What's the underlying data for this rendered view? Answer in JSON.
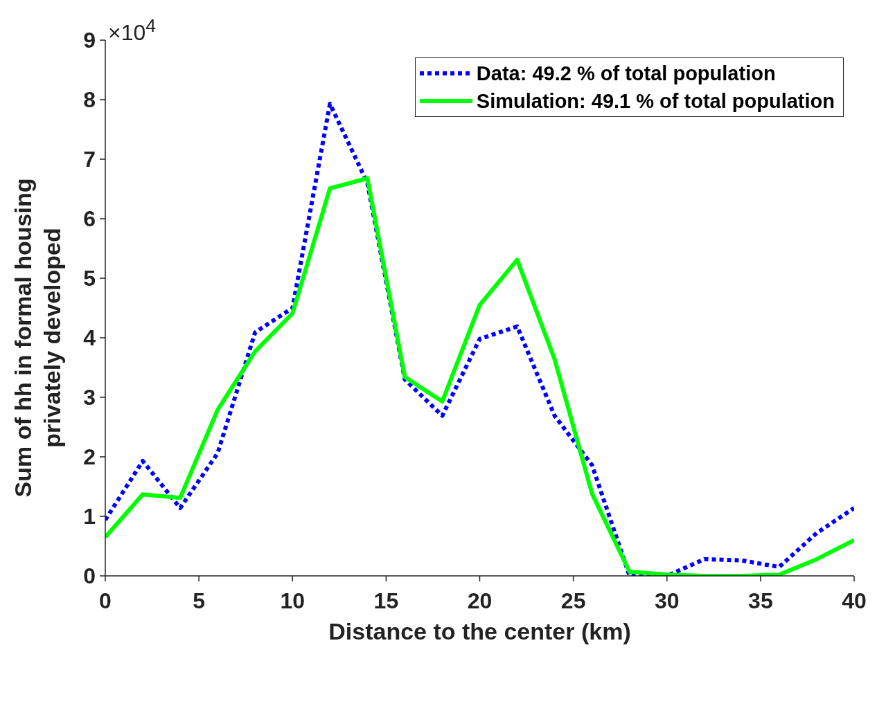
{
  "chart_data": {
    "type": "line",
    "xlabel": "Distance to the center (km)",
    "ylabel": "Sum of hh in formal housing privately developed",
    "annotations": [
      "×10$^{4}$"
    ],
    "x": [
      0,
      2,
      4,
      6,
      8,
      10,
      12,
      14,
      16,
      18,
      20,
      22,
      24,
      26,
      28,
      30,
      32,
      34,
      36,
      38,
      40
    ],
    "series": [
      {
        "name": "Data: 49.2 % of total population",
        "color": "#0000ff",
        "line_style": "dotted",
        "values": [
          0.94,
          1.93,
          1.14,
          2.06,
          4.09,
          4.5,
          7.93,
          6.6,
          3.3,
          2.69,
          3.98,
          4.19,
          2.69,
          1.86,
          0,
          0,
          0.28,
          0.26,
          0.15,
          0.72,
          1.14
        ]
      },
      {
        "name": "Simulation: 49.1 % of total population",
        "color": "#00ff00",
        "line_style": "solid",
        "values": [
          0.65,
          1.37,
          1.31,
          2.79,
          3.77,
          4.41,
          6.51,
          6.68,
          3.34,
          2.93,
          4.55,
          5.31,
          3.64,
          1.38,
          0.07,
          0.02,
          0,
          0,
          0.02,
          0.28,
          0.6
        ]
      }
    ],
    "xlim": [
      0,
      40
    ],
    "xticks": [
      0,
      5,
      10,
      15,
      20,
      25,
      30,
      35,
      40
    ],
    "ylim": [
      0,
      9
    ],
    "yticks": [
      0,
      1,
      2,
      3,
      4,
      5,
      6,
      7,
      8,
      9
    ],
    "grid": false,
    "legend": "top right",
    "marker": "none"
  }
}
